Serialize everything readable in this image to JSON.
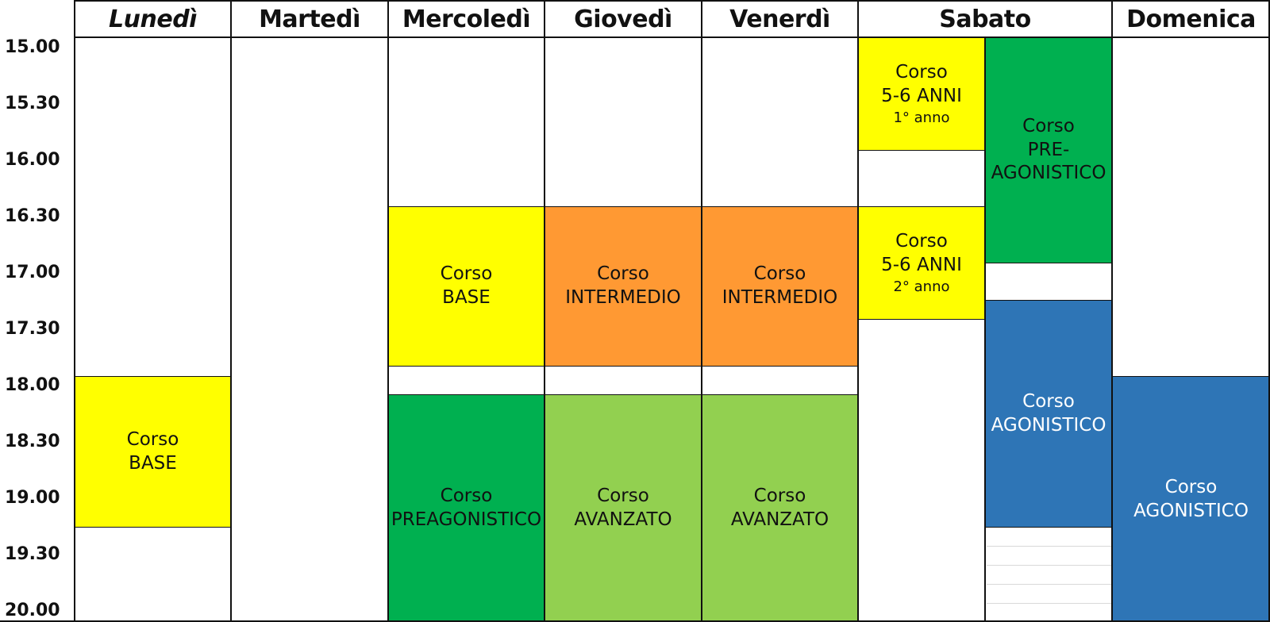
{
  "days": [
    "Lunedì",
    "Martedì",
    "Mercoledì",
    "Giovedì",
    "Venerdì",
    "Sabato",
    "Domenica"
  ],
  "times": [
    "15.00",
    "15.30",
    "16.00",
    "16.30",
    "17.00",
    "17.30",
    "18.00",
    "18.30",
    "19.00",
    "19.30",
    "20.00"
  ],
  "colors": {
    "yellow": "#ffff00",
    "orange": "#ff9933",
    "dark_green": "#00b050",
    "light_green": "#92d050",
    "blue": "#2e75b6"
  },
  "courses": {
    "lun_base": {
      "line1": "Corso",
      "line2": "BASE"
    },
    "mer_base": {
      "line1": "Corso",
      "line2": "BASE"
    },
    "mer_preagonistico": {
      "line1": "Corso",
      "line2": "PREAGONISTICO"
    },
    "gio_intermedio": {
      "line1": "Corso",
      "line2": "INTERMEDIO"
    },
    "gio_avanzato": {
      "line1": "Corso",
      "line2": "AVANZATO"
    },
    "ven_intermedio": {
      "line1": "Corso",
      "line2": "INTERMEDIO"
    },
    "ven_avanzato": {
      "line1": "Corso",
      "line2": "AVANZATO"
    },
    "sab_56_1": {
      "line1": "Corso",
      "line2": "5-6 ANNI",
      "line3": "1° anno"
    },
    "sab_56_2": {
      "line1": "Corso",
      "line2": "5-6 ANNI",
      "line3": "2° anno"
    },
    "sab_preagonistico": {
      "line1": "Corso",
      "line2": "PRE-",
      "line3": "AGONISTICO"
    },
    "sab_agonistico": {
      "line1": "Corso",
      "line2": "AGONISTICO"
    },
    "dom_agonistico": {
      "line1": "Corso",
      "line2": "AGONISTICO"
    }
  }
}
